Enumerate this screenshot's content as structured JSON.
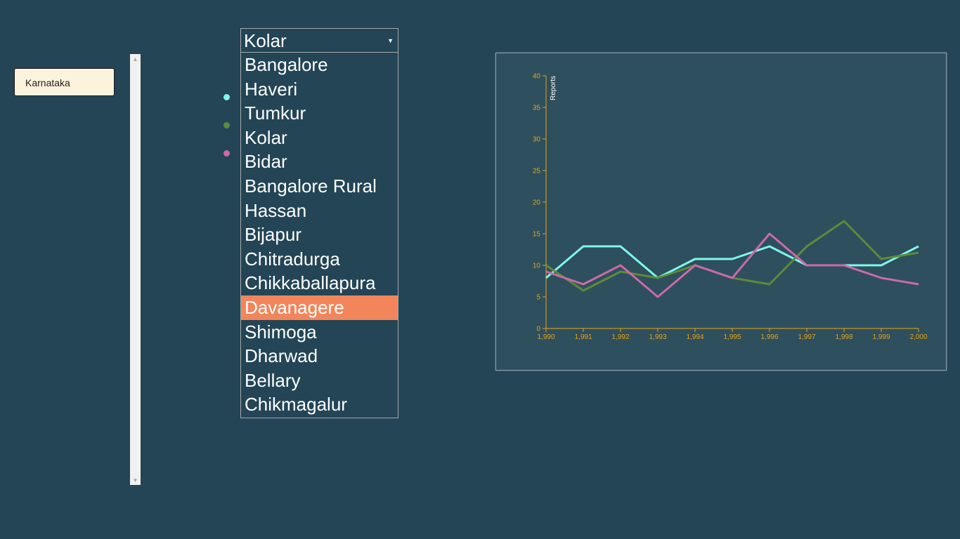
{
  "state_button": {
    "label": "Karnataka"
  },
  "district_select": {
    "selected": "Kolar",
    "options": [
      "Bangalore",
      "Haveri",
      "Tumkur",
      "Kolar",
      "Bidar",
      "Bangalore Rural",
      "Hassan",
      "Bijapur",
      "Chitradurga",
      "Chikkaballapura",
      "Davanagere",
      "Shimoga",
      "Dharwad",
      "Bellary",
      "Chikmagalur"
    ],
    "highlighted": "Davanagere"
  },
  "colors": {
    "background": "#234556",
    "panel": "#2e4f5d",
    "axis": "#e8a317",
    "highlight": "#f2855a",
    "series1": "#7ff8ea",
    "series2": "#5e8a3b",
    "series3": "#cc6aa8"
  },
  "chart_data": {
    "type": "line",
    "ylabel": "Reports",
    "xlabel": "",
    "ylim": [
      0,
      40
    ],
    "xlim": [
      1990,
      2000
    ],
    "y_ticks": [
      "0",
      "5",
      "10",
      "15",
      "20",
      "25",
      "30",
      "35",
      "40"
    ],
    "x_ticks": [
      "1,990",
      "1,991",
      "1,992",
      "1,993",
      "1,994",
      "1,995",
      "1,996",
      "1,997",
      "1,998",
      "1,999",
      "2,000"
    ],
    "x": [
      1990,
      1991,
      1992,
      1993,
      1994,
      1995,
      1996,
      1997,
      1998,
      1999,
      2000
    ],
    "series": [
      {
        "color": "#7ff8ea",
        "values": [
          8,
          13,
          13,
          8,
          11,
          11,
          13,
          10,
          10,
          10,
          13
        ]
      },
      {
        "color": "#5e8a3b",
        "values": [
          10,
          6,
          9,
          8,
          10,
          8,
          7,
          13,
          17,
          11,
          12
        ]
      },
      {
        "color": "#cc6aa8",
        "values": [
          9,
          7,
          10,
          5,
          10,
          8,
          15,
          10,
          10,
          8,
          7
        ]
      }
    ],
    "grid": false
  }
}
